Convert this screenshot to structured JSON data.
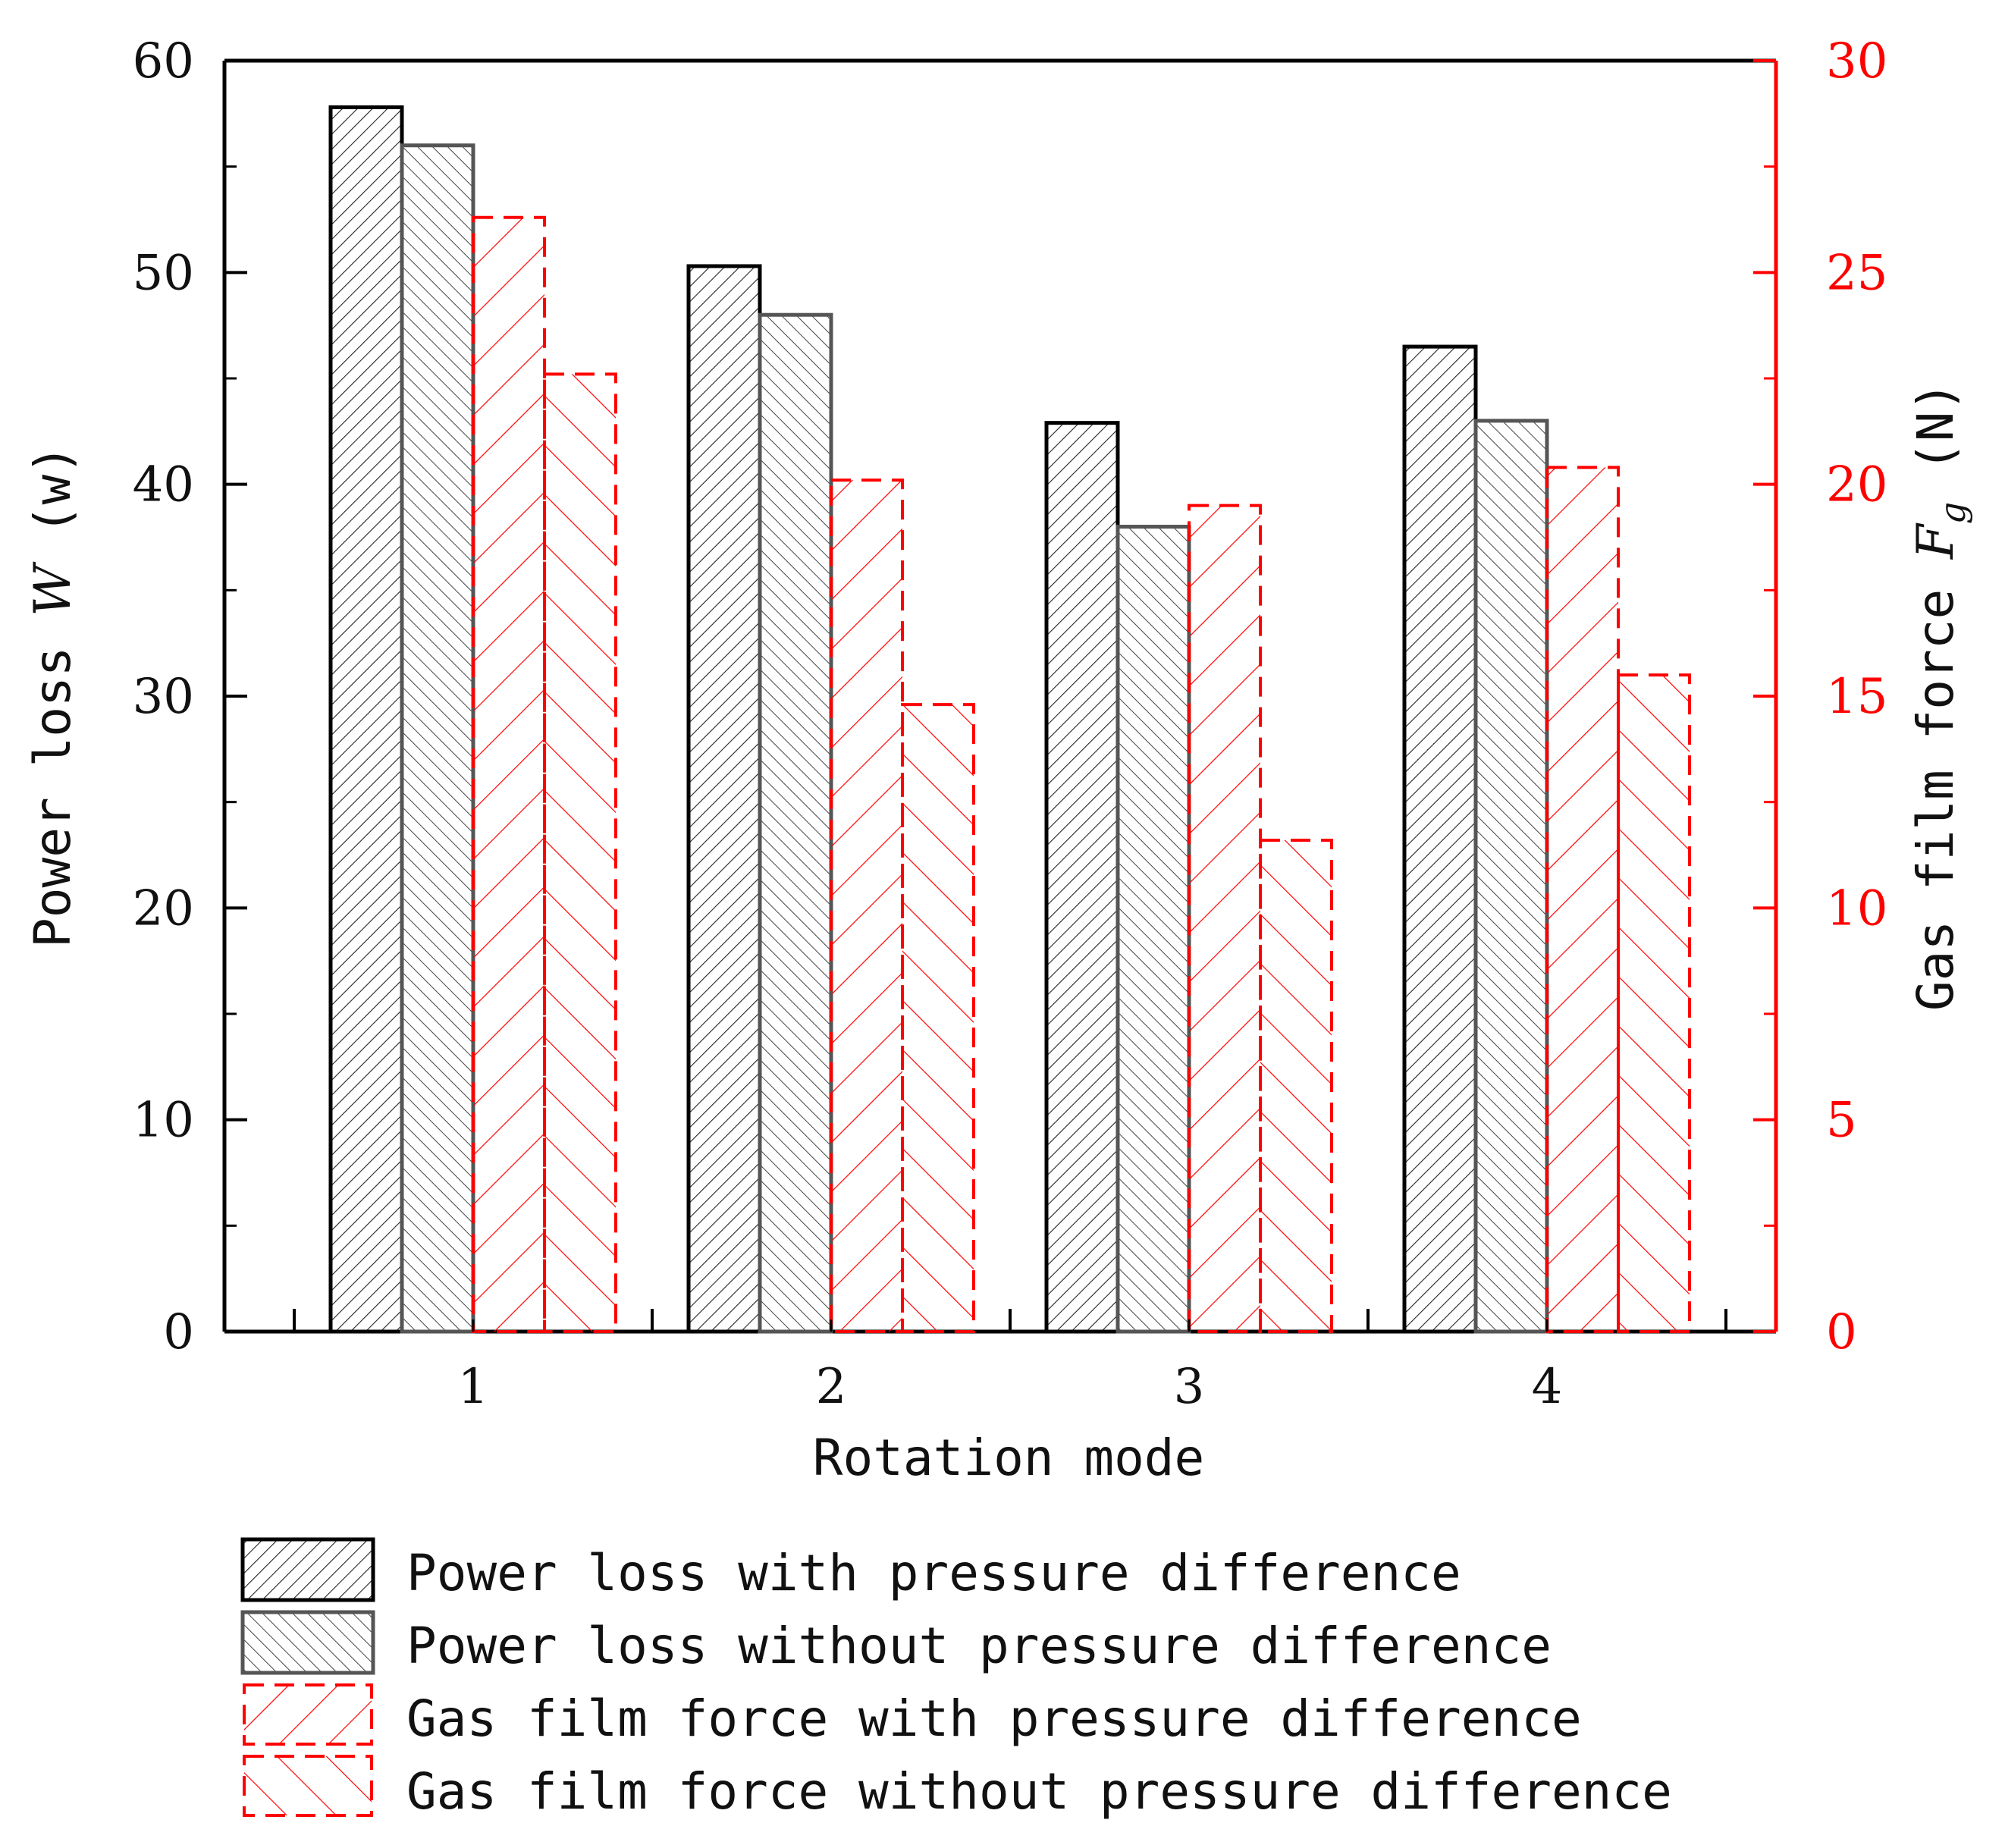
{
  "chart_data": {
    "type": "bar",
    "categories": [
      "1",
      "2",
      "3",
      "4"
    ],
    "xlabel": "Rotation mode",
    "y_left": {
      "label_prefix": "Power loss ",
      "label_var": "W",
      "label_unit": " (w)",
      "ylim": [
        0,
        60
      ],
      "ticks": [
        "0",
        "10",
        "20",
        "30",
        "40",
        "50",
        "60"
      ]
    },
    "y_right": {
      "label_prefix": "Gas film force ",
      "label_var": "F",
      "label_sub": "g",
      "label_unit": " (N)",
      "ylim": [
        0,
        30
      ],
      "ticks": [
        "0",
        "5",
        "10",
        "15",
        "20",
        "25",
        "30"
      ]
    },
    "series": [
      {
        "name": "Power loss with pressure difference",
        "axis": "left",
        "values": [
          57.8,
          50.3,
          42.9,
          46.5
        ]
      },
      {
        "name": "Power loss without pressure difference",
        "axis": "left",
        "values": [
          56.0,
          48.0,
          38.0,
          43.0
        ]
      },
      {
        "name": "Gas film force with pressure difference",
        "axis": "right",
        "values": [
          26.3,
          20.1,
          19.5,
          20.4
        ]
      },
      {
        "name": "Gas film force without pressure difference",
        "axis": "right",
        "values": [
          22.6,
          14.8,
          11.6,
          15.5
        ]
      }
    ],
    "colors": {
      "black": "#1a1a1a",
      "gray": "#555555",
      "red": "#ff0000"
    }
  }
}
